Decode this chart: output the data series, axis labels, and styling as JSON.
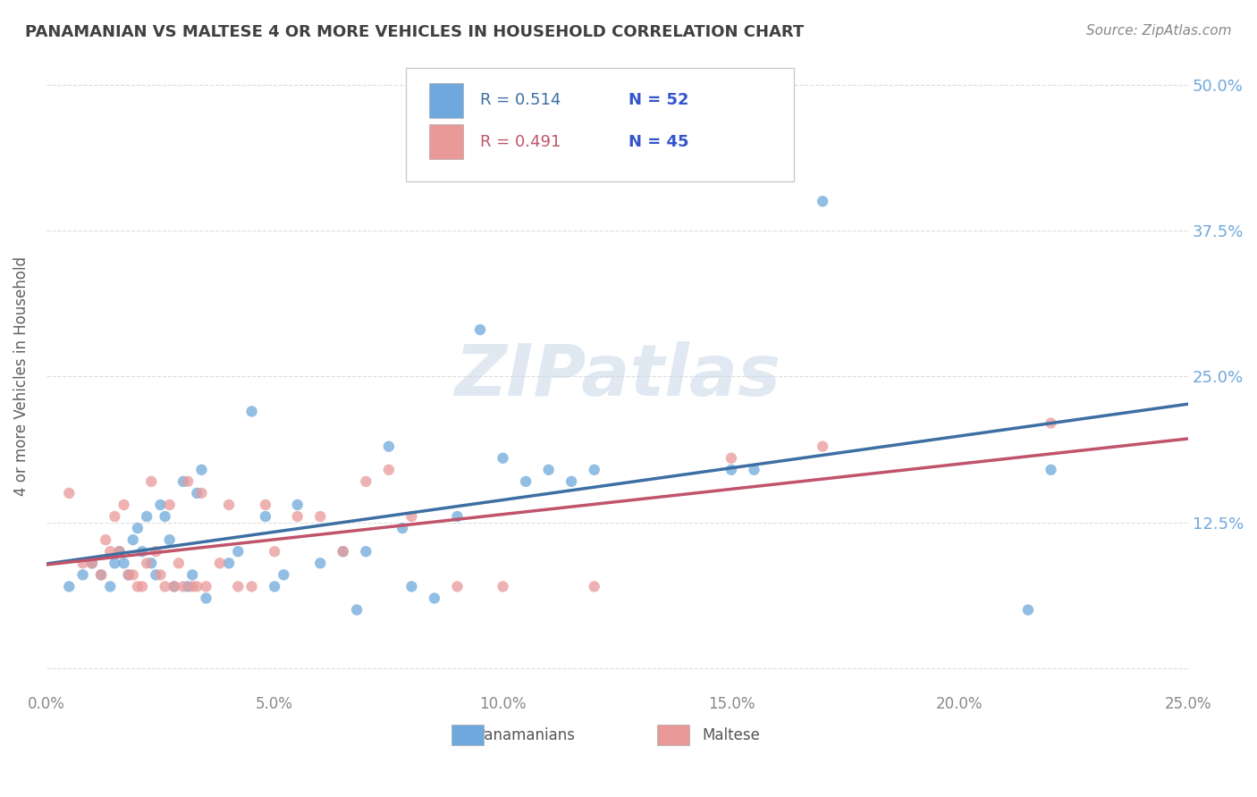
{
  "title": "PANAMANIAN VS MALTESE 4 OR MORE VEHICLES IN HOUSEHOLD CORRELATION CHART",
  "source": "Source: ZipAtlas.com",
  "ylabel": "4 or more Vehicles in Household",
  "watermark": "ZIPatlas",
  "pan_color": "#6fa8dc",
  "malt_color": "#ea9999",
  "pan_line_color": "#3d6fa3",
  "malt_line_color": "#c0546a",
  "pan_scatter": [
    [
      0.005,
      0.07
    ],
    [
      0.008,
      0.08
    ],
    [
      0.01,
      0.09
    ],
    [
      0.012,
      0.08
    ],
    [
      0.014,
      0.07
    ],
    [
      0.015,
      0.09
    ],
    [
      0.016,
      0.1
    ],
    [
      0.017,
      0.09
    ],
    [
      0.018,
      0.08
    ],
    [
      0.019,
      0.11
    ],
    [
      0.02,
      0.12
    ],
    [
      0.021,
      0.1
    ],
    [
      0.022,
      0.13
    ],
    [
      0.023,
      0.09
    ],
    [
      0.024,
      0.08
    ],
    [
      0.025,
      0.14
    ],
    [
      0.026,
      0.13
    ],
    [
      0.027,
      0.11
    ],
    [
      0.028,
      0.07
    ],
    [
      0.03,
      0.16
    ],
    [
      0.031,
      0.07
    ],
    [
      0.032,
      0.08
    ],
    [
      0.033,
      0.15
    ],
    [
      0.034,
      0.17
    ],
    [
      0.035,
      0.06
    ],
    [
      0.04,
      0.09
    ],
    [
      0.042,
      0.1
    ],
    [
      0.045,
      0.22
    ],
    [
      0.048,
      0.13
    ],
    [
      0.05,
      0.07
    ],
    [
      0.052,
      0.08
    ],
    [
      0.055,
      0.14
    ],
    [
      0.06,
      0.09
    ],
    [
      0.065,
      0.1
    ],
    [
      0.068,
      0.05
    ],
    [
      0.07,
      0.1
    ],
    [
      0.075,
      0.19
    ],
    [
      0.078,
      0.12
    ],
    [
      0.08,
      0.07
    ],
    [
      0.085,
      0.06
    ],
    [
      0.09,
      0.13
    ],
    [
      0.095,
      0.29
    ],
    [
      0.1,
      0.18
    ],
    [
      0.105,
      0.16
    ],
    [
      0.11,
      0.17
    ],
    [
      0.115,
      0.16
    ],
    [
      0.12,
      0.17
    ],
    [
      0.15,
      0.17
    ],
    [
      0.155,
      0.17
    ],
    [
      0.17,
      0.4
    ],
    [
      0.215,
      0.05
    ],
    [
      0.22,
      0.17
    ]
  ],
  "malt_scatter": [
    [
      0.005,
      0.15
    ],
    [
      0.008,
      0.09
    ],
    [
      0.01,
      0.09
    ],
    [
      0.012,
      0.08
    ],
    [
      0.013,
      0.11
    ],
    [
      0.014,
      0.1
    ],
    [
      0.015,
      0.13
    ],
    [
      0.016,
      0.1
    ],
    [
      0.017,
      0.14
    ],
    [
      0.018,
      0.08
    ],
    [
      0.019,
      0.08
    ],
    [
      0.02,
      0.07
    ],
    [
      0.021,
      0.07
    ],
    [
      0.022,
      0.09
    ],
    [
      0.023,
      0.16
    ],
    [
      0.024,
      0.1
    ],
    [
      0.025,
      0.08
    ],
    [
      0.026,
      0.07
    ],
    [
      0.027,
      0.14
    ],
    [
      0.028,
      0.07
    ],
    [
      0.029,
      0.09
    ],
    [
      0.03,
      0.07
    ],
    [
      0.031,
      0.16
    ],
    [
      0.032,
      0.07
    ],
    [
      0.033,
      0.07
    ],
    [
      0.034,
      0.15
    ],
    [
      0.035,
      0.07
    ],
    [
      0.038,
      0.09
    ],
    [
      0.04,
      0.14
    ],
    [
      0.042,
      0.07
    ],
    [
      0.045,
      0.07
    ],
    [
      0.048,
      0.14
    ],
    [
      0.05,
      0.1
    ],
    [
      0.055,
      0.13
    ],
    [
      0.06,
      0.13
    ],
    [
      0.065,
      0.1
    ],
    [
      0.07,
      0.16
    ],
    [
      0.075,
      0.17
    ],
    [
      0.08,
      0.13
    ],
    [
      0.09,
      0.07
    ],
    [
      0.1,
      0.07
    ],
    [
      0.12,
      0.07
    ],
    [
      0.15,
      0.18
    ],
    [
      0.17,
      0.19
    ],
    [
      0.22,
      0.21
    ]
  ],
  "pan_R": 0.514,
  "pan_N": 52,
  "malt_R": 0.491,
  "malt_N": 45,
  "xlim": [
    0,
    0.25
  ],
  "ylim": [
    -0.02,
    0.52
  ],
  "ytick_vals": [
    0.0,
    0.125,
    0.25,
    0.375,
    0.5
  ],
  "ytick_labels": [
    "",
    "12.5%",
    "25.0%",
    "37.5%",
    "50.0%"
  ],
  "xtick_vals": [
    0.0,
    0.05,
    0.1,
    0.15,
    0.2,
    0.25
  ],
  "xtick_labels": [
    "0.0%",
    "5.0%",
    "10.0%",
    "15.0%",
    "20.0%",
    "25.0%"
  ],
  "background_color": "#ffffff",
  "grid_color": "#dddddd",
  "title_color": "#404040",
  "source_color": "#888888",
  "axis_label_color": "#6fa8dc"
}
